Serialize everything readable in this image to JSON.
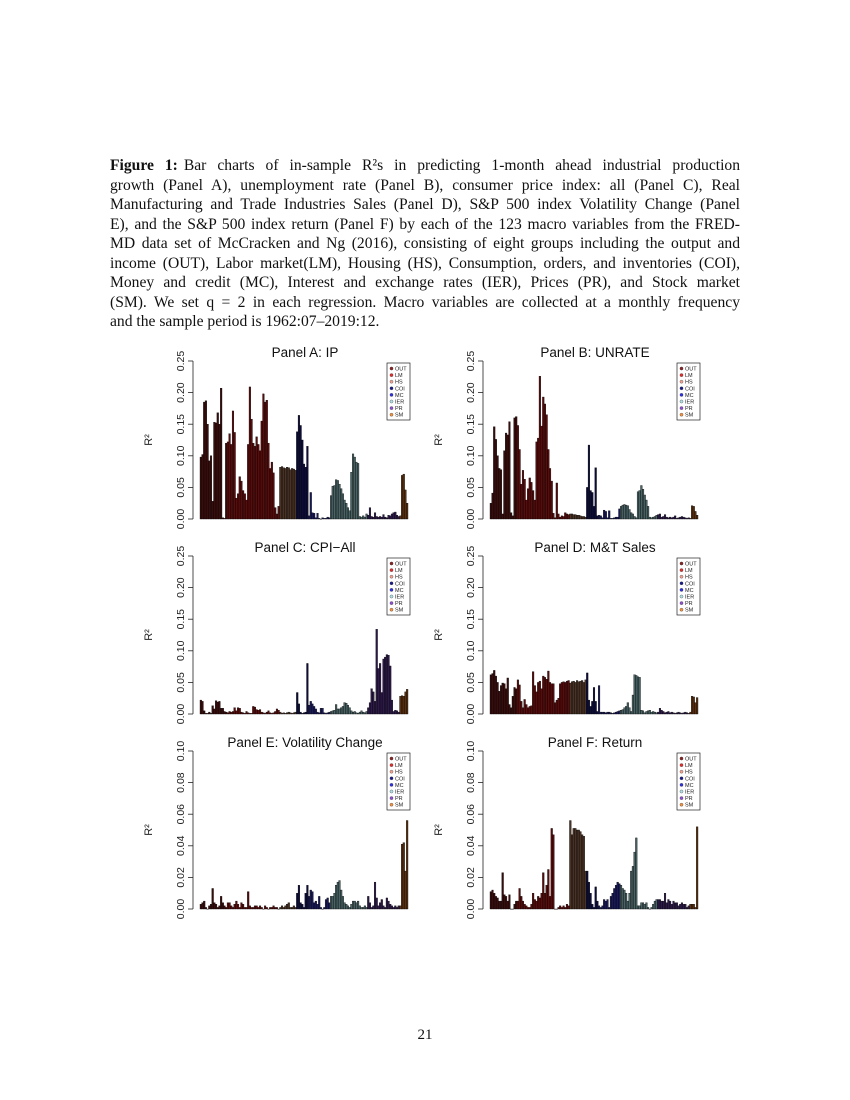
{
  "caption": {
    "label": "Figure 1:",
    "lines": [
      "Bar charts of in-sample R²s in predicting 1-month ahead industrial production",
      "growth (Panel A), unemployment rate (Panel B), consumer price index: all (Panel C), Real",
      "Manufacturing and Trade Industries Sales (Panel D), S&P 500 index Volatility Change (Panel",
      "E), and the S&P 500 index return (Panel F) by each of the 123 macro variables from the FRED-",
      "MD data set of McCracken and Ng (2016), consisting of eight groups including the output and",
      "income (OUT), Labor market(LM), Housing (HS), Consumption, orders, and inventories (COI),",
      "Money and credit (MC), Interest and exchange rates (IER), Prices (PR), and Stock market",
      "(SM). We set q = 2 in each regression. Macro variables are collected at a monthly frequency",
      "and the sample period is 1962:07–2019:12."
    ]
  },
  "page_number": "21",
  "groups": [
    {
      "name": "OUT",
      "legend_color": "#8b2323",
      "bar_color": "#3a0d0d"
    },
    {
      "name": "LM",
      "legend_color": "#e03030",
      "bar_color": "#5a0b0b"
    },
    {
      "name": "HS",
      "legend_color": "#f0a090",
      "bar_color": "#4a3325"
    },
    {
      "name": "COI",
      "legend_color": "#1a1a8a",
      "bar_color": "#0d0d3a"
    },
    {
      "name": "MC",
      "legend_color": "#3030e0",
      "bar_color": "#1a1a5a"
    },
    {
      "name": "IER",
      "legend_color": "#b0e0e6",
      "bar_color": "#4a6466"
    },
    {
      "name": "PR",
      "legend_color": "#9050d0",
      "bar_color": "#2d1a4a"
    },
    {
      "name": "SM",
      "legend_color": "#f09040",
      "bar_color": "#5a3010"
    }
  ],
  "chart_data": [
    {
      "type": "bar",
      "title": "Panel A: IP",
      "ylabel": "R²",
      "ylim": [
        0,
        0.25
      ],
      "yticks": [
        "0.00",
        "0.05",
        "0.10",
        "0.15",
        "0.20",
        "0.25"
      ],
      "legend": "top-right",
      "groups": {
        "OUT": [
          0.098,
          0.102,
          0.185,
          0.187,
          0.15,
          0.092,
          0.1,
          0.028,
          0.153,
          0.152,
          0.168,
          0.15,
          0.207,
          0.002,
          0.001,
          0.12
        ],
        "LM": [
          0.122,
          0.135,
          0.118,
          0.171,
          0.137,
          0.033,
          0.04,
          0.067,
          0.06,
          0.045,
          0.04,
          0.03,
          0.118,
          0.209,
          0.158,
          0.12,
          0.115,
          0.13,
          0.118,
          0.108,
          0.155,
          0.198,
          0.185,
          0.188,
          0.12,
          0.08,
          0.09,
          0.073,
          0.018,
          0.008,
          0.02
        ],
        "HS": [
          0.082,
          0.083,
          0.081,
          0.08,
          0.082,
          0.081,
          0.078,
          0.08,
          0.079,
          0.077
        ],
        "COI": [
          0.138,
          0.164,
          0.148,
          0.125,
          0.087,
          0.082,
          0.115
        ],
        "MC": [
          0.005,
          0.042,
          0.01,
          0.009,
          0.002,
          0.009,
          0.001,
          0.0,
          0.002,
          0.001,
          0.001,
          0.003,
          0.002
        ],
        "IER": [
          0.037,
          0.052,
          0.053,
          0.062,
          0.061,
          0.055,
          0.048,
          0.04,
          0.03,
          0.025,
          0.018,
          0.013,
          0.074,
          0.103,
          0.098,
          0.09,
          0.088,
          0.004,
          0.003,
          0.005,
          0.003,
          0.008
        ],
        "PR": [
          0.006,
          0.018,
          0.004,
          0.003,
          0.01,
          0.004,
          0.003,
          0.004,
          0.003,
          0.007,
          0.003,
          0.002,
          0.006,
          0.005,
          0.008,
          0.01,
          0.011,
          0.006,
          0.004
        ],
        "SM": [
          0.005,
          0.069,
          0.071,
          0.046,
          0.025
        ]
      }
    },
    {
      "type": "bar",
      "title": "Panel B: UNRATE",
      "ylabel": "R²",
      "ylim": [
        0,
        0.25
      ],
      "yticks": [
        "0.00",
        "0.05",
        "0.10",
        "0.15",
        "0.20",
        "0.25"
      ],
      "legend": "top-right",
      "groups": {
        "OUT": [
          0.025,
          0.041,
          0.146,
          0.126,
          0.1,
          0.08,
          0.078,
          0.008,
          0.108,
          0.136,
          0.133,
          0.154,
          0.01,
          0.005,
          0.16,
          0.162
        ],
        "LM": [
          0.148,
          0.11,
          0.055,
          0.077,
          0.063,
          0.03,
          0.048,
          0.065,
          0.058,
          0.045,
          0.03,
          0.122,
          0.128,
          0.226,
          0.147,
          0.193,
          0.182,
          0.165,
          0.11,
          0.08,
          0.06,
          0.009,
          0.002,
          0.057,
          0.008,
          0.003,
          0.005,
          0.004,
          0.01,
          0.008,
          0.007
        ],
        "HS": [
          0.008,
          0.008,
          0.007,
          0.007,
          0.006,
          0.006,
          0.005,
          0.004,
          0.004,
          0.003
        ],
        "COI": [
          0.05,
          0.117,
          0.045,
          0.042,
          0.02,
          0.081,
          0.005
        ],
        "MC": [
          0.006,
          0.005,
          0.002,
          0.014,
          0.012,
          0.002,
          0.013,
          0.001,
          0.001,
          0.002,
          0.003,
          0.003,
          0.016
        ],
        "IER": [
          0.02,
          0.022,
          0.023,
          0.022,
          0.021,
          0.015,
          0.01,
          0.008,
          0.004,
          0.002,
          0.043,
          0.045,
          0.053,
          0.047,
          0.038,
          0.03,
          0.02,
          0.003,
          0.002,
          0.003,
          0.004,
          0.006
        ],
        "PR": [
          0.007,
          0.008,
          0.003,
          0.004,
          0.007,
          0.003,
          0.002,
          0.003,
          0.002,
          0.003,
          0.005,
          0.001,
          0.002,
          0.003,
          0.004,
          0.003,
          0.002,
          0.001,
          0.002
        ],
        "SM": [
          0.001,
          0.021,
          0.02,
          0.012,
          0.006
        ]
      }
    },
    {
      "type": "bar",
      "title": "Panel C: CPI−All",
      "ylabel": "R²",
      "ylim": [
        0,
        0.25
      ],
      "yticks": [
        "0.00",
        "0.05",
        "0.10",
        "0.15",
        "0.20",
        "0.25"
      ],
      "legend": "top-right",
      "groups": {
        "OUT": [
          0.022,
          0.02,
          0.005,
          0.001,
          0.001,
          0.003,
          0.001,
          0.013,
          0.008,
          0.021,
          0.019,
          0.02,
          0.009,
          0.009,
          0.004,
          0.003
        ],
        "LM": [
          0.002,
          0.004,
          0.003,
          0.004,
          0.01,
          0.005,
          0.01,
          0.009,
          0.003,
          0.002,
          0.001,
          0.004,
          0.002,
          0.001,
          0.001,
          0.012,
          0.011,
          0.007,
          0.006,
          0.007,
          0.003,
          0.002,
          0.001,
          0.003,
          0.005,
          0.002,
          0.001,
          0.002,
          0.004,
          0.008,
          0.006
        ],
        "HS": [
          0.003,
          0.001,
          0.002,
          0.001,
          0.002,
          0.003,
          0.002,
          0.001,
          0.002,
          0.003
        ],
        "COI": [
          0.034,
          0.016,
          0.003,
          0.001,
          0.002,
          0.003,
          0.08
        ],
        "MC": [
          0.014,
          0.02,
          0.016,
          0.012,
          0.008,
          0.003,
          0.002,
          0.009,
          0.009,
          0.002,
          0.001,
          0.002,
          0.003
        ],
        "IER": [
          0.004,
          0.005,
          0.006,
          0.015,
          0.008,
          0.008,
          0.01,
          0.012,
          0.018,
          0.017,
          0.014,
          0.01,
          0.005,
          0.003,
          0.004,
          0.002,
          0.001,
          0.003,
          0.005,
          0.003,
          0.002,
          0.004
        ],
        "PR": [
          0.01,
          0.018,
          0.04,
          0.035,
          0.02,
          0.134,
          0.072,
          0.08,
          0.034,
          0.087,
          0.09,
          0.094,
          0.093,
          0.076,
          0.022,
          0.004,
          0.006,
          0.005,
          0.003
        ],
        "SM": [
          0.028,
          0.029,
          0.028,
          0.035,
          0.039
        ]
      }
    },
    {
      "type": "bar",
      "title": "Panel D: M&T Sales",
      "ylabel": "R²",
      "ylim": [
        0,
        0.25
      ],
      "yticks": [
        "0.00",
        "0.05",
        "0.10",
        "0.15",
        "0.20",
        "0.25"
      ],
      "legend": "top-right",
      "groups": {
        "OUT": [
          0.062,
          0.064,
          0.069,
          0.06,
          0.05,
          0.036,
          0.045,
          0.049,
          0.048,
          0.04,
          0.057,
          0.015,
          0.01,
          0.028,
          0.042,
          0.04
        ],
        "LM": [
          0.054,
          0.046,
          0.02,
          0.01,
          0.023,
          0.015,
          0.01,
          0.012,
          0.013,
          0.067,
          0.045,
          0.035,
          0.05,
          0.052,
          0.04,
          0.06,
          0.058,
          0.055,
          0.068,
          0.05,
          0.048,
          0.048,
          0.018,
          0.022,
          0.025,
          0.048,
          0.05,
          0.051,
          0.05,
          0.052,
          0.053
        ],
        "HS": [
          0.049,
          0.051,
          0.052,
          0.05,
          0.053,
          0.051,
          0.052,
          0.053,
          0.05,
          0.054
        ],
        "COI": [
          0.065,
          0.022,
          0.012,
          0.02,
          0.042,
          0.02,
          0.004
        ],
        "MC": [
          0.045,
          0.003,
          0.003,
          0.003,
          0.002,
          0.003,
          0.003,
          0.002,
          0.001,
          0.002,
          0.003,
          0.004,
          0.005
        ],
        "IER": [
          0.006,
          0.007,
          0.01,
          0.012,
          0.018,
          0.01,
          0.004,
          0.03,
          0.062,
          0.061,
          0.059,
          0.058,
          0.006,
          0.005,
          0.002,
          0.004,
          0.005,
          0.006,
          0.003,
          0.004,
          0.003,
          0.002
        ],
        "PR": [
          0.003,
          0.009,
          0.006,
          0.004,
          0.002,
          0.003,
          0.004,
          0.002,
          0.003,
          0.002,
          0.001,
          0.002,
          0.003,
          0.002,
          0.001,
          0.002,
          0.003,
          0.002,
          0.001
        ],
        "SM": [
          0.003,
          0.028,
          0.027,
          0.018,
          0.026
        ]
      }
    },
    {
      "type": "bar",
      "title": "Panel E: Volatility Change",
      "ylabel": "R²",
      "ylim": [
        0,
        0.1
      ],
      "yticks": [
        "0.00",
        "0.02",
        "0.04",
        "0.06",
        "0.08",
        "0.10"
      ],
      "legend": "top-right",
      "groups": {
        "OUT": [
          0.003,
          0.004,
          0.005,
          0.001,
          0.0,
          0.002,
          0.003,
          0.013,
          0.004,
          0.003,
          0.001,
          0.002,
          0.008,
          0.004,
          0.002,
          0.001
        ],
        "LM": [
          0.004,
          0.004,
          0.002,
          0.001,
          0.003,
          0.005,
          0.003,
          0.001,
          0.004,
          0.003,
          0.001,
          0.001,
          0.011,
          0.002,
          0.001,
          0.001,
          0.002,
          0.002,
          0.001,
          0.002,
          0.001,
          0.0,
          0.002,
          0.001,
          0.0,
          0.001,
          0.001,
          0.002,
          0.001,
          0.001,
          0.0
        ],
        "HS": [
          0.001,
          0.002,
          0.001,
          0.002,
          0.003,
          0.004,
          0.001,
          0.001,
          0.002,
          0.001
        ],
        "COI": [
          0.01,
          0.015,
          0.004,
          0.003,
          0.001,
          0.01,
          0.015
        ],
        "MC": [
          0.008,
          0.012,
          0.011,
          0.004,
          0.005,
          0.003,
          0.008,
          0.001,
          0.0,
          0.001,
          0.006,
          0.007,
          0.004
        ],
        "IER": [
          0.008,
          0.008,
          0.01,
          0.015,
          0.017,
          0.018,
          0.012,
          0.008,
          0.004,
          0.003,
          0.002,
          0.001,
          0.003,
          0.005,
          0.005,
          0.004,
          0.005,
          0.002,
          0.001,
          0.001,
          0.002,
          0.001
        ],
        "PR": [
          0.008,
          0.004,
          0.001,
          0.002,
          0.017,
          0.007,
          0.002,
          0.004,
          0.006,
          0.002,
          0.001,
          0.007,
          0.005,
          0.003,
          0.002,
          0.001,
          0.002,
          0.001,
          0.002
        ],
        "SM": [
          0.002,
          0.041,
          0.042,
          0.024,
          0.056
        ]
      }
    },
    {
      "type": "bar",
      "title": "Panel F: Return",
      "ylabel": "R²",
      "ylim": [
        0,
        0.1
      ],
      "yticks": [
        "0.00",
        "0.02",
        "0.04",
        "0.06",
        "0.08",
        "0.10"
      ],
      "legend": "top-right",
      "groups": {
        "OUT": [
          0.011,
          0.012,
          0.01,
          0.008,
          0.007,
          0.005,
          0.005,
          0.023,
          0.009,
          0.008,
          0.005,
          0.009,
          0.0,
          0.0,
          0.003,
          0.005
        ],
        "LM": [
          0.005,
          0.013,
          0.008,
          0.005,
          0.003,
          0.002,
          0.001,
          0.001,
          0.003,
          0.01,
          0.006,
          0.005,
          0.008,
          0.007,
          0.01,
          0.023,
          0.01,
          0.015,
          0.025,
          0.008,
          0.051,
          0.047,
          0.0,
          0.0,
          0.001,
          0.002,
          0.001,
          0.002,
          0.001,
          0.003,
          0.002
        ],
        "HS": [
          0.056,
          0.047,
          0.051,
          0.051,
          0.05,
          0.05,
          0.049,
          0.047,
          0.046,
          0.024
        ],
        "COI": [
          0.024,
          0.017,
          0.01,
          0.003,
          0.001,
          0.014,
          0.005
        ],
        "MC": [
          0.002,
          0.001,
          0.002,
          0.006,
          0.005,
          0.006,
          0.001,
          0.008,
          0.01,
          0.013,
          0.015,
          0.017,
          0.016
        ],
        "IER": [
          0.015,
          0.013,
          0.012,
          0.01,
          0.005,
          0.01,
          0.024,
          0.027,
          0.036,
          0.045,
          0.002,
          0.002,
          0.004,
          0.004,
          0.003,
          0.004,
          0.001,
          0.0,
          0.001,
          0.003,
          0.005,
          0.006
        ],
        "PR": [
          0.006,
          0.006,
          0.005,
          0.005,
          0.01,
          0.004,
          0.006,
          0.005,
          0.003,
          0.005,
          0.004,
          0.004,
          0.002,
          0.003,
          0.004,
          0.003,
          0.003,
          0.001,
          0.002
        ],
        "SM": [
          0.003,
          0.003,
          0.003,
          0.001,
          0.052
        ]
      }
    }
  ]
}
